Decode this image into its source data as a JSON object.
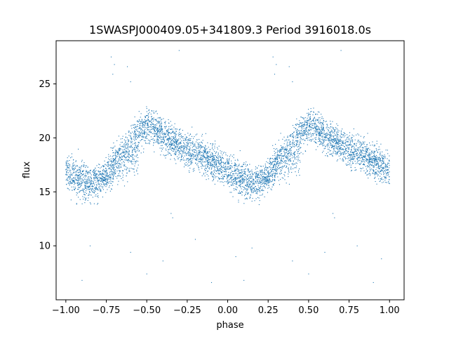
{
  "chart_data": {
    "type": "scatter",
    "title": "1SWASPJ000409.05+341809.3 Period 3916018.0s",
    "xlabel": "phase",
    "ylabel": "flux",
    "xlim": [
      -1.06,
      1.09
    ],
    "ylim": [
      5.0,
      29.0
    ],
    "xticks": [
      -1.0,
      -0.75,
      -0.5,
      -0.25,
      0.0,
      0.25,
      0.5,
      0.75,
      1.0
    ],
    "xtick_labels": [
      "−1.00",
      "−0.75",
      "−0.50",
      "−0.25",
      "0.00",
      "0.25",
      "0.50",
      "0.75",
      "1.00"
    ],
    "yticks": [
      10,
      15,
      20,
      25
    ],
    "ytick_labels": [
      "10",
      "15",
      "20",
      "25"
    ],
    "grid": false,
    "marker_color": "#1f77b4",
    "series": [
      {
        "profile_phase": [
          0.0,
          0.05,
          0.1,
          0.15,
          0.2,
          0.25,
          0.3,
          0.35,
          0.4,
          0.45,
          0.5,
          0.55,
          0.6,
          0.65,
          0.7,
          0.75,
          0.8,
          0.85,
          0.9,
          0.95,
          1.0
        ],
        "profile_flux": [
          16.8,
          16.2,
          16.0,
          15.8,
          16.0,
          16.6,
          17.8,
          18.8,
          19.6,
          20.6,
          21.0,
          20.8,
          20.2,
          19.8,
          19.4,
          19.0,
          18.6,
          18.2,
          17.8,
          17.4,
          16.8
        ],
        "secondary_phase": [
          0.05,
          0.15,
          0.25,
          0.35,
          0.45
        ],
        "secondary_flux": [
          17.0,
          15.8,
          16.4,
          17.6,
          18.2
        ],
        "outlier_points": [
          [
            -0.72,
            27.5
          ],
          [
            -0.7,
            26.8
          ],
          [
            -0.71,
            25.9
          ],
          [
            -0.62,
            26.6
          ],
          [
            -0.6,
            25.2
          ],
          [
            0.28,
            27.5
          ],
          [
            0.3,
            26.8
          ],
          [
            0.29,
            25.9
          ],
          [
            0.38,
            26.6
          ],
          [
            0.4,
            25.2
          ],
          [
            -0.35,
            13.0
          ],
          [
            -0.34,
            12.6
          ],
          [
            0.65,
            13.0
          ],
          [
            0.66,
            12.6
          ],
          [
            -0.85,
            10.0
          ],
          [
            -0.6,
            9.4
          ],
          [
            -0.4,
            8.6
          ],
          [
            -0.2,
            10.6
          ],
          [
            0.05,
            9.0
          ],
          [
            0.15,
            9.8
          ],
          [
            0.4,
            8.6
          ],
          [
            0.6,
            9.4
          ],
          [
            0.8,
            10.0
          ],
          [
            0.95,
            8.8
          ],
          [
            -0.9,
            6.8
          ],
          [
            -0.1,
            6.6
          ],
          [
            0.1,
            6.8
          ],
          [
            0.9,
            6.6
          ],
          [
            -0.5,
            7.4
          ],
          [
            0.5,
            7.4
          ],
          [
            -0.3,
            28.1
          ],
          [
            0.7,
            28.1
          ]
        ]
      }
    ]
  }
}
